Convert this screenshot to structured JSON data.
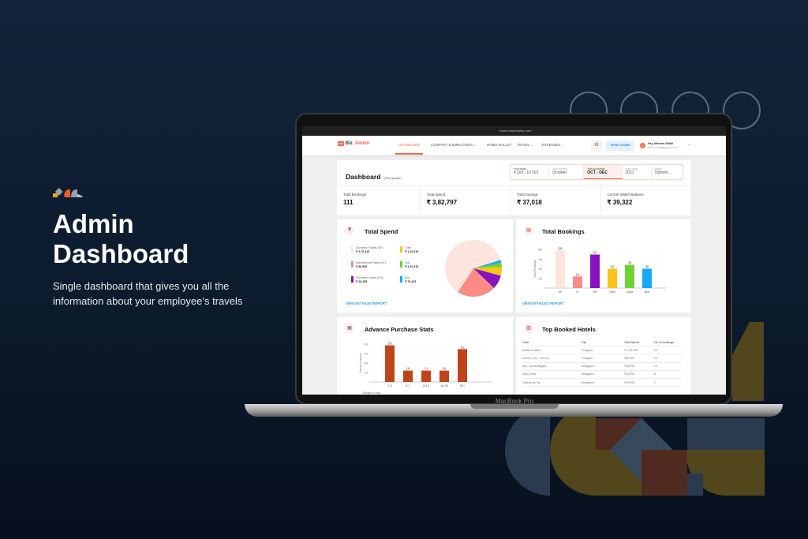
{
  "hero": {
    "title_line1": "Admin",
    "title_line2": "Dashboard",
    "subtitle": "Single dashboard that gives you all the information about your employee’s travels"
  },
  "laptop": {
    "model_label": "MacBook Pro"
  },
  "browser": {
    "url": "mybiz.makemytrip.com"
  },
  "app": {
    "logo_my": "my",
    "logo_biz": "Biz",
    "logo_admin": ". Admin",
    "nav": [
      {
        "label": "DASHBOARD",
        "active": true
      },
      {
        "label": "COMPANY & EMPLOYEES",
        "dropdown": true
      },
      {
        "label": "MYBIZ WALLET"
      },
      {
        "label": "TRAVEL",
        "dropdown": true
      },
      {
        "label": "EXPENSES",
        "dropdown": true
      }
    ],
    "mybiz_home": "MYBIZ HOME",
    "user_greeting": "Hey Abhinav Mittal",
    "user_email": "abhinav.mittal@go-mmt.com",
    "avatar_initial": "A",
    "accent": "#ef6a4c"
  },
  "dashboard": {
    "title": "Dashboard",
    "title_note": "(This Quarter)",
    "periods": [
      {
        "label": "THIS WEEK",
        "value": "4 Oct - 10 Oct"
      },
      {
        "label": "THIS MONTH",
        "value": "October"
      },
      {
        "label": "THIS QUARTER",
        "value": "OCT - DEC",
        "active": true
      },
      {
        "label": "THIS YEAR",
        "value": "2021"
      },
      {
        "label": "MORE",
        "value": "Options",
        "dropdown": true
      }
    ],
    "stats": [
      {
        "label": "Total Bookings",
        "value": "111"
      },
      {
        "label": "Total Spend",
        "value": "₹ 3,82,797"
      },
      {
        "label": "Total Savings",
        "value": "₹ 37,018"
      },
      {
        "label": "Current Wallet Balance",
        "value": "₹ 39,322"
      }
    ],
    "view_report": "VIEW DETAILED REPORT",
    "hotels": {
      "title": "Top Booked Hotels",
      "headers": [
        "Hotel",
        "City",
        "Total Spend",
        "No. of bookings"
      ],
      "rows": [
        [
          "Radisson Blue",
          "Gurgaon",
          "₹ 2,34,543",
          "23"
        ],
        [
          "Lemon Tree - Sec 29",
          "Gurgaon",
          "₹60,993",
          "12"
        ],
        [
          "Ibis - Koramangala",
          "Bengaluru",
          "₹54,993",
          "14"
        ],
        [
          "Keys Hotel",
          "Bengaluru",
          "₹24,993",
          "8"
        ],
        [
          "Vivanta by Taj",
          "Bengaluru",
          "₹24,993",
          "1"
        ]
      ]
    }
  },
  "chart_data": [
    {
      "type": "pie",
      "title": "Total Spend",
      "legend": [
        {
          "name": "Domestic Flights (DF)",
          "value": "₹ 2,70,315",
          "color": "#fde4dc"
        },
        {
          "name": "International Flights (IF)",
          "value": "₹ 86,505",
          "color": "#fc8a85"
        },
        {
          "name": "Domestic Hotels (DH)",
          "value": "₹ 26,159",
          "color": "#8612bd"
        },
        {
          "name": "Train",
          "value": "₹ 1,15,315",
          "color": "#fcc419"
        },
        {
          "name": "Cab",
          "value": "₹ 1,70,315",
          "color": "#6fd332"
        },
        {
          "name": "Bus",
          "value": "₹ 70,315",
          "color": "#16a9f6"
        }
      ],
      "shares_pct": {
        "Domestic Flights (DF)": 61,
        "International Flights (IF)": 22,
        "Domestic Hotels (DH)": 8,
        "Train": 5,
        "Cab": 2.3,
        "Bus": 1.7
      }
    },
    {
      "type": "bar",
      "title": "Total Bookings",
      "ylabel": "Total Bookings",
      "categories": [
        "DF",
        "IF",
        "DH",
        "Train",
        "Cabs",
        "Bus"
      ],
      "values": [
        58,
        18,
        52,
        30,
        36,
        30
      ],
      "ylabels": [
        "58",
        "18",
        "52",
        "30",
        "36",
        "30"
      ],
      "colors": [
        "#fde4dc",
        "#fc8a85",
        "#8612bd",
        "#fcc419",
        "#6fd332",
        "#16a9f6"
      ],
      "ylim": [
        0,
        60
      ],
      "yticks": [
        15,
        30,
        45,
        60
      ]
    },
    {
      "type": "bar",
      "title": "Advance Purchase Stats",
      "ylabel": "Spend in rupees",
      "xlabel": "Range of days",
      "categories": [
        "0-3",
        "4-7",
        "8-15",
        "15-30",
        "30+"
      ],
      "values": [
        58,
        18,
        18,
        18,
        52
      ],
      "ylabels": [
        "58",
        "18",
        "18",
        "18",
        "52"
      ],
      "colors": [
        "#c0441a"
      ],
      "ylim": [
        0,
        60
      ],
      "yticks": [
        15,
        30,
        45,
        60
      ]
    }
  ]
}
